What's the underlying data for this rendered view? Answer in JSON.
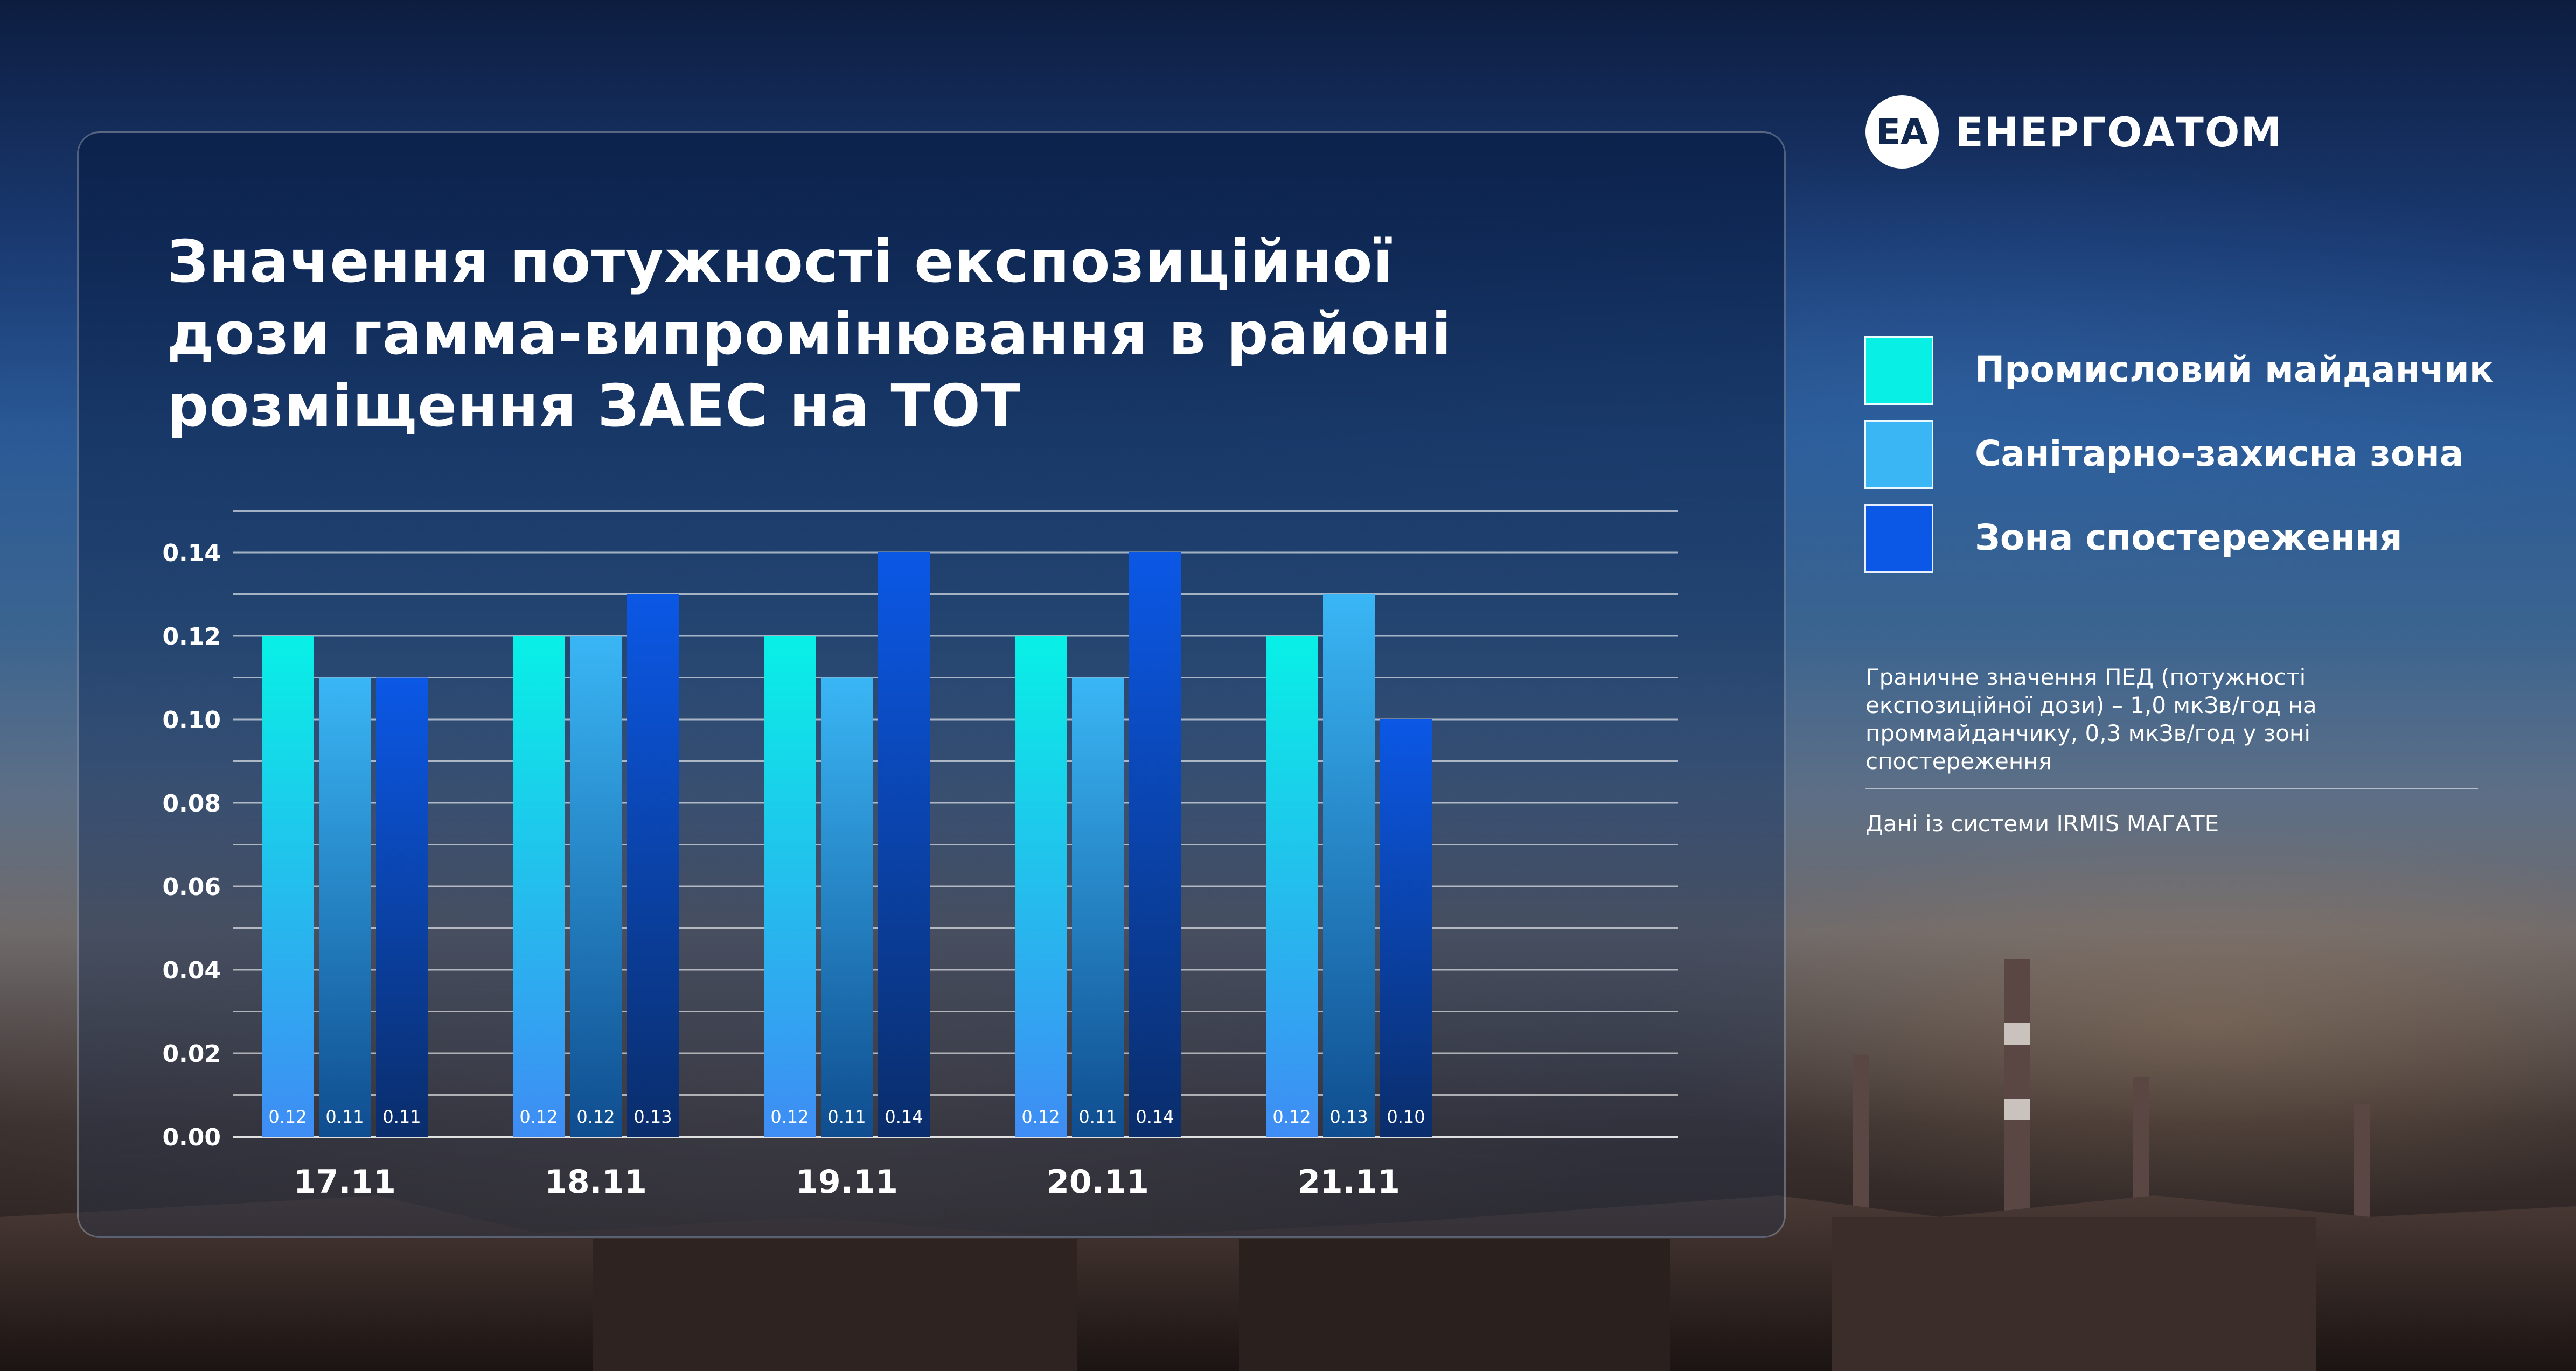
{
  "brand": {
    "name": "ЕНЕРГОАТОМ",
    "logo_letters": "ЕА",
    "logo_icon": "energoatom-logo-icon"
  },
  "title": "Значення потужності експозиційної\nдози гамма-випромінювання в районі\nрозміщення ЗАЕС на ТОТ",
  "note": "Граничне значення ПЕД (потужності експозиційної дози) – 1,0 мкЗв/год на проммайданчику, 0,3 мкЗв/год у зоні спостереження",
  "source": "Дані із системи IRMIS МАГАТЕ",
  "colors": {
    "series1": "#08f0e6",
    "series2": "#3ab6f5",
    "series3": "#0b58e6"
  },
  "chart_data": {
    "type": "bar",
    "categories": [
      "17.11",
      "18.11",
      "19.11",
      "20.11",
      "21.11"
    ],
    "series": [
      {
        "name": "Промисловий майданчик",
        "values": [
          0.12,
          0.12,
          0.12,
          0.12,
          0.12
        ],
        "labels": [
          "0.12",
          "0.12",
          "0.12",
          "0.12",
          "0.12"
        ]
      },
      {
        "name": "Санітарно-захисна зона",
        "values": [
          0.11,
          0.12,
          0.11,
          0.11,
          0.13
        ],
        "labels": [
          "0.11",
          "0.12",
          "0.11",
          "0.11",
          "0.13"
        ]
      },
      {
        "name": "Зона спостереження",
        "values": [
          0.11,
          0.13,
          0.14,
          0.14,
          0.1
        ],
        "labels": [
          "0.11",
          "0.13",
          "0.14",
          "0.14",
          "0.10"
        ]
      }
    ],
    "ylim": [
      0,
      0.15
    ],
    "yticks": [
      "0.00",
      "0.02",
      "0.04",
      "0.06",
      "0.08",
      "0.10",
      "0.12",
      "0.14"
    ],
    "grid": true,
    "legend_position": "right"
  }
}
